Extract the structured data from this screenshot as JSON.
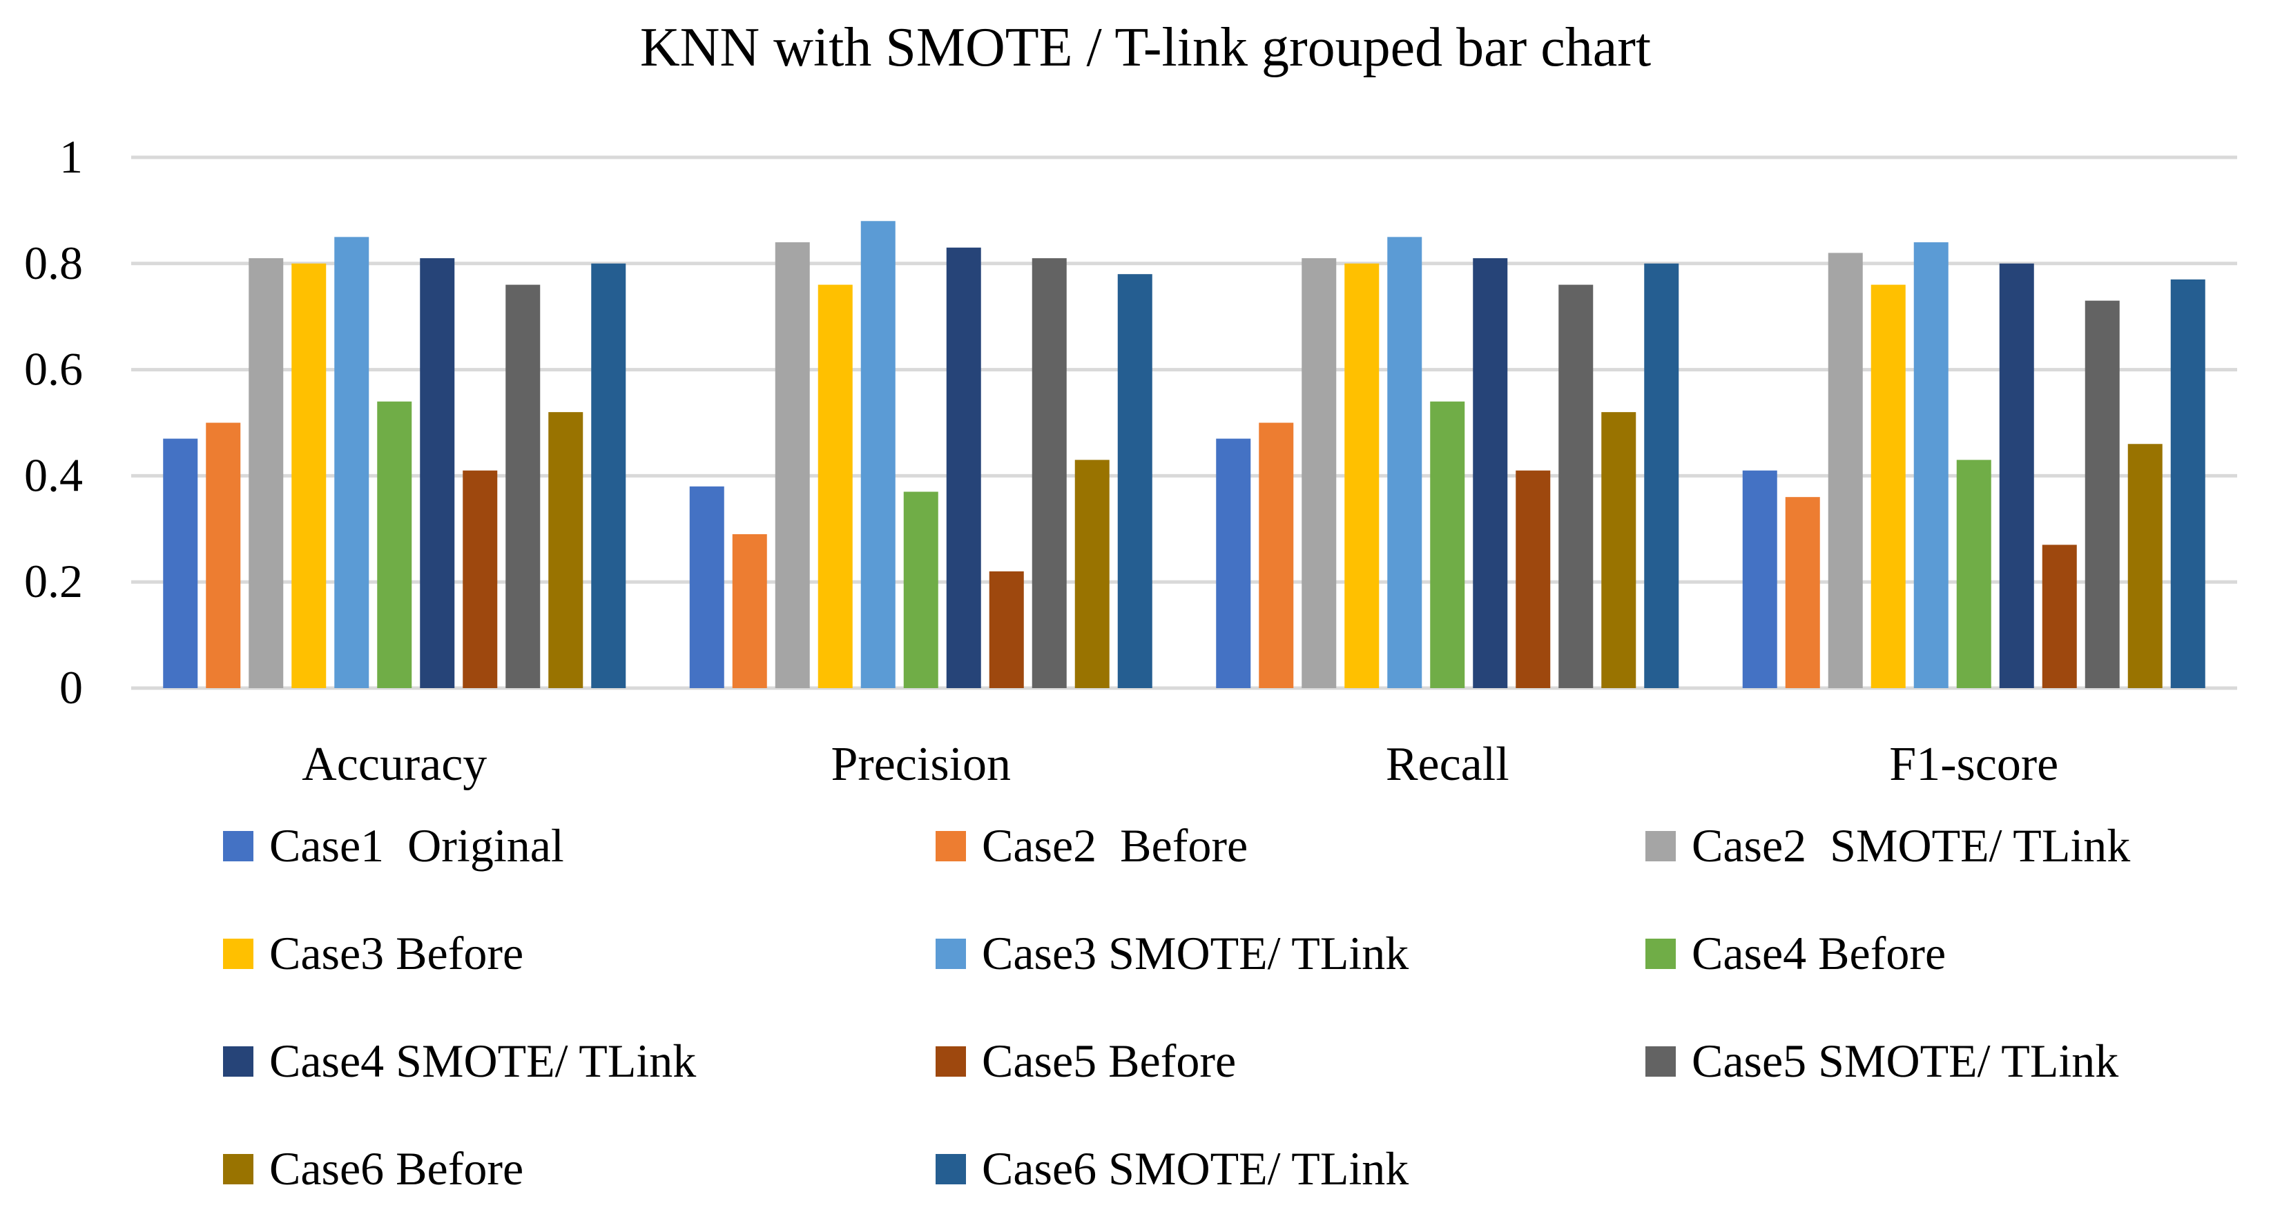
{
  "chart_data": {
    "type": "bar",
    "title": "KNN with SMOTE / T-link grouped bar chart",
    "categories": [
      "Accuracy",
      "Precision",
      "Recall",
      "F1-score"
    ],
    "ylim": [
      0,
      1
    ],
    "yticks": [
      0,
      0.2,
      0.4,
      0.6,
      0.8,
      1
    ],
    "ytick_labels": [
      "0",
      "0.2",
      "0.4",
      "0.6",
      "0.8",
      "1"
    ],
    "grid": true,
    "legend_position": "bottom",
    "series": [
      {
        "name": "Case1  Original",
        "color": "#4472C4",
        "values": [
          0.47,
          0.38,
          0.47,
          0.41
        ]
      },
      {
        "name": "Case2  Before",
        "color": "#ED7D31",
        "values": [
          0.5,
          0.29,
          0.5,
          0.36
        ]
      },
      {
        "name": "Case2  SMOTE/ TLink",
        "color": "#A5A5A5",
        "values": [
          0.81,
          0.84,
          0.81,
          0.82
        ]
      },
      {
        "name": "Case3 Before",
        "color": "#FFC000",
        "values": [
          0.8,
          0.76,
          0.8,
          0.76
        ]
      },
      {
        "name": "Case3 SMOTE/ TLink",
        "color": "#5B9BD5",
        "values": [
          0.85,
          0.88,
          0.85,
          0.84
        ]
      },
      {
        "name": "Case4 Before",
        "color": "#70AD47",
        "values": [
          0.54,
          0.37,
          0.54,
          0.43
        ]
      },
      {
        "name": "Case4 SMOTE/ TLink",
        "color": "#264478",
        "values": [
          0.81,
          0.83,
          0.81,
          0.8
        ]
      },
      {
        "name": "Case5 Before",
        "color": "#9E480E",
        "values": [
          0.41,
          0.22,
          0.41,
          0.27
        ]
      },
      {
        "name": "Case5 SMOTE/ TLink",
        "color": "#636363",
        "values": [
          0.76,
          0.81,
          0.76,
          0.73
        ]
      },
      {
        "name": "Case6 Before",
        "color": "#997300",
        "values": [
          0.52,
          0.43,
          0.52,
          0.46
        ]
      },
      {
        "name": "Case6 SMOTE/ TLink",
        "color": "#255E91",
        "values": [
          0.8,
          0.78,
          0.8,
          0.77
        ]
      }
    ]
  }
}
